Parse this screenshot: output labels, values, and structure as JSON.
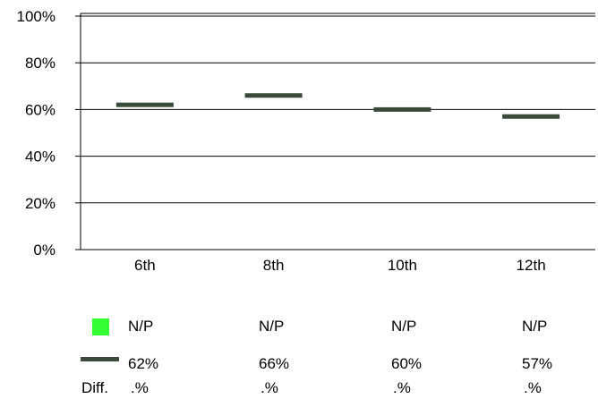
{
  "chart_data": {
    "type": "line",
    "categories": [
      "6th",
      "8th",
      "10th",
      "12th"
    ],
    "ylim": [
      0,
      100
    ],
    "y_ticks": [
      0,
      20,
      40,
      60,
      80,
      100
    ],
    "y_tick_labels": [
      "0%",
      "20%",
      "40%",
      "60%",
      "80%",
      "100%"
    ],
    "grid": true,
    "series": [
      {
        "name": "N/P",
        "values": [
          null,
          null,
          null,
          null
        ],
        "color": "#33ff33",
        "marker": "bar"
      },
      {
        "name": "",
        "values": [
          62,
          66,
          60,
          57
        ],
        "color": "#3a4a38",
        "marker": "dash"
      }
    ]
  },
  "table": {
    "row1": [
      "N/P",
      "N/P",
      "N/P",
      "N/P"
    ],
    "row2": [
      "62%",
      "66%",
      "60%",
      "57%"
    ],
    "row3_label": "Diff.",
    "row3": [
      ".%",
      ".%",
      ".%",
      ".%"
    ]
  }
}
